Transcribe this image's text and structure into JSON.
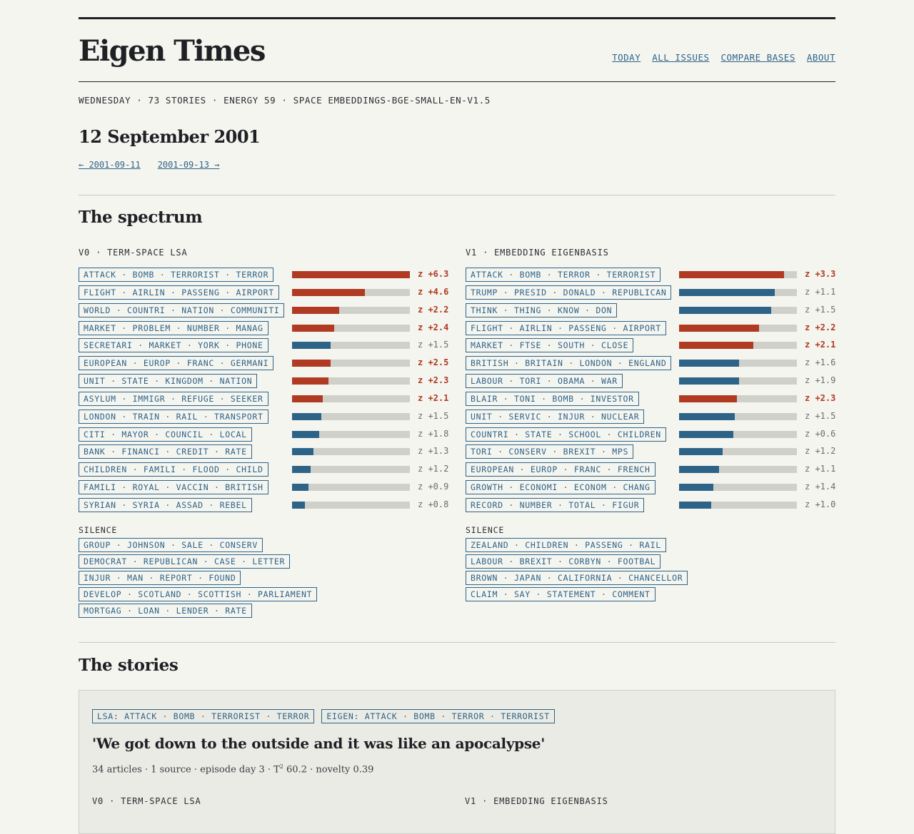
{
  "site": {
    "title": "Eigen Times"
  },
  "nav": {
    "today": "TODAY",
    "all_issues": "ALL ISSUES",
    "compare_bases": "COMPARE BASES",
    "about": "ABOUT"
  },
  "meta": "WEDNESDAY · 73 STORIES · ENERGY 59 · SPACE EMBEDDINGS-BGE-SMALL-EN-V1.5",
  "date_title": "12 September 2001",
  "prev": "← 2001-09-11",
  "next": "2001-09-13 →",
  "spectrum": {
    "heading": "The spectrum",
    "colors": {
      "hot": "#b03a22",
      "cool": "#2e6388",
      "track": "#d0d0ca"
    },
    "columns": [
      {
        "title": "V0 · TERM-SPACE LSA",
        "rows": [
          {
            "tag": "ATTACK · BOMB · TERRORIST · TERROR",
            "level": 1.0,
            "z": "z +6.3",
            "hot": true
          },
          {
            "tag": "FLIGHT · AIRLIN · PASSENG · AIRPORT",
            "level": 0.62,
            "z": "z +4.6",
            "hot": true
          },
          {
            "tag": "WORLD · COUNTRI · NATION · COMMUNITI",
            "level": 0.4,
            "z": "z +2.2",
            "hot": true
          },
          {
            "tag": "MARKET · PROBLEM · NUMBER · MANAG",
            "level": 0.36,
            "z": "z +2.4",
            "hot": true
          },
          {
            "tag": "SECRETARI · MARKET · YORK · PHONE",
            "level": 0.33,
            "z": "z +1.5",
            "hot": false
          },
          {
            "tag": "EUROPEAN · EUROP · FRANC · GERMANI",
            "level": 0.33,
            "z": "z +2.5",
            "hot": true
          },
          {
            "tag": "UNIT · STATE · KINGDOM · NATION",
            "level": 0.31,
            "z": "z +2.3",
            "hot": true
          },
          {
            "tag": "ASYLUM · IMMIGR · REFUGE · SEEKER",
            "level": 0.26,
            "z": "z +2.1",
            "hot": true
          },
          {
            "tag": "LONDON · TRAIN · RAIL · TRANSPORT",
            "level": 0.25,
            "z": "z +1.5",
            "hot": false
          },
          {
            "tag": "CITI · MAYOR · COUNCIL · LOCAL",
            "level": 0.23,
            "z": "z +1.8",
            "hot": false
          },
          {
            "tag": "BANK · FINANCI · CREDIT · RATE",
            "level": 0.18,
            "z": "z +1.3",
            "hot": false
          },
          {
            "tag": "CHILDREN · FAMILI · FLOOD · CHILD",
            "level": 0.16,
            "z": "z +1.2",
            "hot": false
          },
          {
            "tag": "FAMILI · ROYAL · VACCIN · BRITISH",
            "level": 0.14,
            "z": "z +0.9",
            "hot": false
          },
          {
            "tag": "SYRIAN · SYRIA · ASSAD · REBEL",
            "level": 0.11,
            "z": "z +0.8",
            "hot": false
          }
        ],
        "silence_label": "SILENCE",
        "silence": [
          "GROUP · JOHNSON · SALE · CONSERV",
          "DEMOCRAT · REPUBLICAN · CASE · LETTER",
          "INJUR · MAN · REPORT · FOUND",
          "DEVELOP · SCOTLAND · SCOTTISH · PARLIAMENT",
          "MORTGAG · LOAN · LENDER · RATE"
        ]
      },
      {
        "title": "V1 · EMBEDDING EIGENBASIS",
        "rows": [
          {
            "tag": "ATTACK · BOMB · TERROR · TERRORIST",
            "level": 0.89,
            "z": "z +3.3",
            "hot": true
          },
          {
            "tag": "TRUMP · PRESID · DONALD · REPUBLICAN",
            "level": 0.81,
            "z": "z +1.1",
            "hot": false
          },
          {
            "tag": "THINK · THING · KNOW · DON",
            "level": 0.78,
            "z": "z +1.5",
            "hot": false
          },
          {
            "tag": "FLIGHT · AIRLIN · PASSENG · AIRPORT",
            "level": 0.68,
            "z": "z +2.2",
            "hot": true
          },
          {
            "tag": "MARKET · FTSE · SOUTH · CLOSE",
            "level": 0.63,
            "z": "z +2.1",
            "hot": true
          },
          {
            "tag": "BRITISH · BRITAIN · LONDON · ENGLAND",
            "level": 0.51,
            "z": "z +1.6",
            "hot": false
          },
          {
            "tag": "LABOUR · TORI · OBAMA · WAR",
            "level": 0.51,
            "z": "z +1.9",
            "hot": false
          },
          {
            "tag": "BLAIR · TONI · BOMB · INVESTOR",
            "level": 0.49,
            "z": "z +2.3",
            "hot": true
          },
          {
            "tag": "UNIT · SERVIC · INJUR · NUCLEAR",
            "level": 0.47,
            "z": "z +1.5",
            "hot": false
          },
          {
            "tag": "COUNTRI · STATE · SCHOOL · CHILDREN",
            "level": 0.46,
            "z": "z +0.6",
            "hot": false
          },
          {
            "tag": "TORI · CONSERV · BREXIT · MPS",
            "level": 0.37,
            "z": "z +1.2",
            "hot": false
          },
          {
            "tag": "EUROPEAN · EUROP · FRANC · FRENCH",
            "level": 0.34,
            "z": "z +1.1",
            "hot": false
          },
          {
            "tag": "GROWTH · ECONOMI · ECONOM · CHANG",
            "level": 0.29,
            "z": "z +1.4",
            "hot": false
          },
          {
            "tag": "RECORD · NUMBER · TOTAL · FIGUR",
            "level": 0.27,
            "z": "z +1.0",
            "hot": false
          }
        ],
        "silence_label": "SILENCE",
        "silence": [
          "ZEALAND · CHILDREN · PASSENG · RAIL",
          "LABOUR · BREXIT · CORBYN · FOOTBAL",
          "BROWN · JAPAN · CALIFORNIA · CHANCELLOR",
          "CLAIM · SAY · STATEMENT · COMMENT"
        ]
      }
    ]
  },
  "stories": {
    "heading": "The stories",
    "first": {
      "lsa_tag": "LSA: ATTACK · BOMB · TERRORIST · TERROR",
      "eigen_tag": "EIGEN: ATTACK · BOMB · TERROR · TERRORIST",
      "title": "'We got down to the outside and it was like an apocalypse'",
      "meta_prefix": "34 articles · 1 source · episode day 3 · T",
      "meta_sup": "2",
      "meta_suffix": " 60.2 · novelty 0.39",
      "col0": "V0 · TERM-SPACE LSA",
      "col1": "V1 · EMBEDDING EIGENBASIS"
    }
  }
}
